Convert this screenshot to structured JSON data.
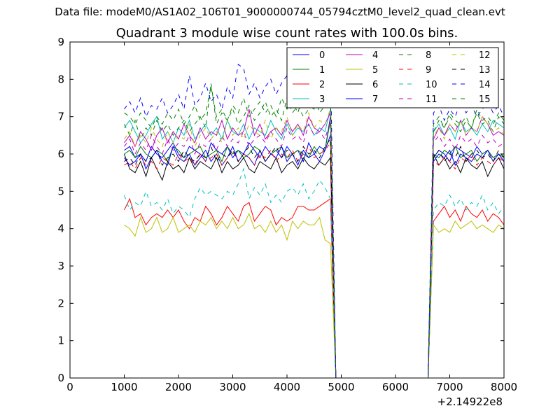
{
  "figure": {
    "suptitle": "Data file: modeM0/AS1A02_106T01_9000000744_05794cztM0_level2_quad_clean.evt"
  },
  "chart_data": {
    "type": "line",
    "title": "Quadrant 3 module wise count rates with 100.0s bins.",
    "xlabel": "",
    "ylabel": "",
    "x_offset_label": "+2.14922e8",
    "xlim": [
      0,
      8000
    ],
    "ylim": [
      0,
      9
    ],
    "xticks": [
      0,
      1000,
      2000,
      3000,
      4000,
      5000,
      6000,
      7000,
      8000
    ],
    "yticks": [
      0,
      1,
      2,
      3,
      4,
      5,
      6,
      7,
      8,
      9
    ],
    "grid": false,
    "legend_position": "top-right",
    "x_description": "time bins (100 s), x offset +2.14922e8",
    "segments": [
      {
        "x_start": 1000,
        "x_end": 4800,
        "step": 100
      },
      {
        "x_start": 4800,
        "x_end": 4900,
        "step": 100
      },
      {
        "x_start": 4900,
        "x_end": 6700,
        "step": 100,
        "constant": 0
      },
      {
        "x_start": 6700,
        "x_end": 8000,
        "step": 100
      }
    ],
    "series": [
      {
        "name": "0",
        "color": "#0000ff",
        "dash": "solid",
        "values1": [
          6.1,
          6.2,
          5.9,
          6.0,
          5.8,
          6.2,
          6.0,
          5.9,
          6.1,
          6.3,
          6.0,
          5.9,
          6.2,
          6.1,
          6.0,
          5.8,
          6.3,
          6.1,
          6.0,
          6.2,
          5.9,
          6.1,
          6.0,
          6.3,
          6.1,
          5.9,
          6.2,
          6.0,
          6.1,
          5.9,
          6.2,
          6.0,
          6.1,
          5.8,
          6.3,
          6.0,
          6.2,
          6.1,
          7.0
        ],
        "values2": [
          5.9,
          6.1,
          6.0,
          5.8,
          6.2,
          6.1,
          6.0,
          5.9,
          6.2,
          6.0,
          6.1,
          5.9,
          6.0,
          5.8
        ]
      },
      {
        "name": "1",
        "color": "#008000",
        "dash": "solid",
        "values1": [
          6.0,
          6.1,
          5.9,
          6.2,
          6.0,
          5.9,
          6.1,
          6.0,
          5.8,
          6.2,
          6.1,
          5.9,
          6.0,
          6.1,
          6.2,
          5.9,
          6.0,
          6.1,
          5.8,
          6.2,
          6.0,
          6.1,
          5.9,
          6.0,
          6.2,
          6.1,
          5.8,
          6.0,
          6.1,
          6.2,
          5.9,
          6.0,
          6.1,
          6.0,
          5.9,
          6.2,
          6.0,
          6.1,
          6.9
        ],
        "values2": [
          6.0,
          5.9,
          6.1,
          6.0,
          6.2,
          5.9,
          6.0,
          6.1,
          5.8,
          6.0,
          6.1,
          5.9,
          6.0,
          5.9
        ]
      },
      {
        "name": "2",
        "color": "#ff0000",
        "dash": "solid",
        "values1": [
          4.5,
          4.8,
          4.3,
          4.4,
          4.1,
          4.3,
          4.4,
          4.3,
          4.5,
          4.3,
          4.5,
          4.2,
          4.0,
          4.3,
          4.2,
          4.6,
          4.4,
          4.1,
          4.3,
          4.6,
          4.4,
          4.2,
          4.6,
          4.7,
          4.2,
          4.4,
          4.6,
          4.5,
          4.1,
          4.3,
          4.2,
          4.3,
          4.6,
          4.6,
          4.5,
          4.5,
          4.6,
          4.7,
          4.8
        ],
        "values2": [
          4.2,
          4.4,
          4.6,
          4.3,
          4.5,
          4.2,
          4.6,
          4.4,
          4.3,
          4.5,
          4.2,
          4.4,
          4.3,
          4.1
        ]
      },
      {
        "name": "3",
        "color": "#00bfbf",
        "dash": "solid",
        "values1": [
          6.7,
          6.9,
          6.6,
          6.3,
          6.5,
          6.8,
          7.0,
          6.4,
          6.6,
          6.3,
          6.7,
          6.5,
          6.9,
          6.4,
          6.6,
          6.8,
          6.5,
          6.7,
          6.4,
          6.9,
          6.6,
          6.5,
          6.8,
          6.4,
          6.7,
          6.6,
          6.5,
          6.9,
          6.6,
          6.4,
          6.8,
          6.5,
          6.7,
          6.6,
          6.8,
          6.5,
          6.7,
          6.6,
          7.2
        ],
        "values2": [
          6.6,
          6.8,
          6.5,
          6.7,
          6.4,
          6.9,
          6.6,
          6.7,
          6.5,
          6.8,
          6.6,
          6.9,
          6.8,
          6.7
        ]
      },
      {
        "name": "4",
        "color": "#bf00bf",
        "dash": "solid",
        "values1": [
          6.3,
          6.5,
          6.2,
          6.6,
          6.4,
          6.1,
          6.5,
          6.7,
          6.3,
          6.6,
          6.4,
          6.8,
          6.5,
          6.3,
          6.7,
          6.4,
          6.6,
          6.5,
          6.9,
          6.4,
          6.7,
          6.5,
          6.6,
          7.2,
          6.5,
          6.8,
          6.4,
          6.6,
          6.7,
          6.5,
          6.9,
          6.6,
          6.8,
          6.5,
          7.0,
          6.7,
          6.6,
          6.8,
          7.1
        ],
        "values2": [
          6.4,
          6.7,
          6.5,
          6.8,
          6.6,
          6.9,
          6.5,
          6.7,
          6.6,
          7.0,
          6.8,
          6.5,
          6.6,
          6.5
        ]
      },
      {
        "name": "5",
        "color": "#bfbf00",
        "dash": "solid",
        "values1": [
          4.1,
          4.0,
          3.8,
          4.3,
          3.9,
          4.0,
          4.3,
          3.9,
          4.0,
          4.3,
          3.9,
          4.0,
          4.1,
          3.9,
          4.2,
          4.1,
          4.3,
          4.0,
          4.2,
          4.0,
          4.3,
          4.0,
          4.1,
          4.4,
          4.0,
          4.1,
          3.9,
          4.2,
          3.9,
          4.1,
          3.7,
          4.2,
          4.0,
          4.2,
          4.1,
          4.1,
          4.3,
          3.7,
          3.6
        ],
        "values2": [
          4.1,
          3.9,
          4.0,
          3.9,
          4.2,
          4.0,
          4.1,
          4.2,
          4.0,
          4.1,
          4.0,
          3.9,
          4.1,
          4.0
        ]
      },
      {
        "name": "6",
        "color": "#000000",
        "dash": "solid",
        "values1": [
          6.0,
          5.6,
          5.5,
          5.8,
          5.4,
          5.9,
          5.6,
          5.3,
          5.8,
          5.6,
          5.7,
          5.5,
          5.9,
          5.6,
          5.8,
          5.7,
          5.6,
          5.9,
          5.5,
          5.8,
          5.6,
          5.7,
          5.9,
          5.6,
          5.5,
          5.8,
          5.7,
          5.6,
          5.9,
          5.5,
          5.7,
          5.8,
          5.6,
          5.9,
          5.7,
          5.6,
          5.8,
          5.7,
          5.9
        ],
        "values2": [
          6.0,
          5.7,
          5.9,
          5.6,
          5.8,
          5.5,
          5.9,
          5.7,
          5.6,
          5.8,
          5.4,
          5.7,
          5.9,
          5.6
        ]
      },
      {
        "name": "7",
        "color": "#0000ff",
        "dash": "solid",
        "values1": [
          5.9,
          5.7,
          5.8,
          6.0,
          5.6,
          5.9,
          6.1,
          5.8,
          5.7,
          6.2,
          5.9,
          5.8,
          6.0,
          5.7,
          5.9,
          6.1,
          5.8,
          6.0,
          5.7,
          5.9,
          6.2,
          5.8,
          6.0,
          5.9,
          5.7,
          6.1,
          5.8,
          6.0,
          5.9,
          6.2,
          5.8,
          6.0,
          5.7,
          6.1,
          5.9,
          6.0,
          5.8,
          6.1,
          6.5
        ],
        "values2": [
          5.8,
          6.0,
          5.9,
          6.1,
          5.7,
          6.0,
          5.9,
          5.8,
          6.0,
          5.9,
          6.1,
          5.8,
          6.0,
          5.8
        ]
      },
      {
        "name": "8",
        "color": "#008000",
        "dash": "dashed",
        "values1": [
          6.8,
          6.5,
          6.9,
          6.4,
          6.7,
          6.5,
          6.9,
          6.6,
          6.8,
          6.5,
          6.7,
          6.9,
          6.6,
          6.8,
          7.0,
          6.7,
          7.9,
          6.8,
          7.1,
          6.9,
          7.2,
          6.8,
          7.0,
          7.3,
          6.9,
          7.1,
          7.4,
          7.0,
          7.2,
          6.9,
          7.5,
          7.1,
          7.3,
          7.0,
          7.2,
          7.6,
          7.1,
          7.3,
          7.4
        ],
        "values2": [
          6.6,
          6.9,
          6.7,
          7.0,
          6.8,
          6.6,
          6.9,
          6.7,
          7.1,
          6.8,
          6.9,
          6.6,
          7.0,
          6.8
        ]
      },
      {
        "name": "9",
        "color": "#ff0000",
        "dash": "dashed",
        "values1": [
          5.7,
          5.8,
          5.6,
          5.9,
          5.7,
          5.8,
          5.6,
          5.9,
          5.8,
          5.7,
          6.0,
          5.8,
          5.9,
          5.7,
          6.0,
          5.8,
          5.9,
          6.0,
          5.7,
          5.9,
          6.1,
          5.8,
          6.0,
          5.9,
          5.7,
          6.0,
          5.9,
          6.1,
          5.8,
          6.0,
          5.9,
          6.1,
          5.8,
          6.0,
          6.2,
          5.9,
          6.0,
          6.1,
          6.3
        ],
        "values2": [
          5.8,
          5.7,
          5.9,
          5.8,
          5.6,
          5.9,
          5.8,
          6.0,
          5.7,
          5.9,
          5.8,
          5.7,
          5.9,
          5.8
        ]
      },
      {
        "name": "10",
        "color": "#00bfbf",
        "dash": "dashed",
        "values1": [
          4.9,
          4.5,
          4.7,
          4.6,
          5.0,
          4.6,
          4.7,
          4.5,
          4.8,
          4.4,
          4.6,
          4.5,
          4.3,
          4.8,
          5.1,
          4.9,
          5.0,
          4.9,
          4.8,
          5.0,
          4.9,
          5.2,
          5.6,
          4.8,
          5.1,
          4.9,
          5.2,
          4.7,
          4.9,
          4.7,
          5.0,
          5.1,
          4.9,
          5.2,
          4.8,
          5.0,
          5.3,
          5.1,
          4.8
        ],
        "values2": [
          4.5,
          4.7,
          4.6,
          4.9,
          4.6,
          4.8,
          4.5,
          4.7,
          4.6,
          4.9,
          4.5,
          4.7,
          4.4,
          4.6
        ]
      },
      {
        "name": "11",
        "color": "#bf00bf",
        "dash": "dashed",
        "values1": [
          6.2,
          6.4,
          6.0,
          6.3,
          6.1,
          6.5,
          6.2,
          6.0,
          6.4,
          6.1,
          6.3,
          6.2,
          6.5,
          6.0,
          6.3,
          6.2,
          6.4,
          6.1,
          6.5,
          6.2,
          6.4,
          6.3,
          6.6,
          6.2,
          6.4,
          6.5,
          6.3,
          6.6,
          6.4,
          6.2,
          6.7,
          6.4,
          6.5,
          6.3,
          6.8,
          6.5,
          6.6,
          6.4,
          6.9
        ],
        "values2": [
          6.3,
          6.5,
          6.2,
          6.4,
          6.1,
          6.5,
          6.3,
          6.4,
          6.2,
          6.5,
          6.3,
          6.4,
          6.2,
          6.3
        ]
      },
      {
        "name": "12",
        "color": "#bfbf00",
        "dash": "dashed",
        "values1": [
          6.4,
          6.6,
          6.2,
          6.5,
          6.3,
          6.7,
          6.4,
          6.2,
          6.6,
          6.3,
          6.5,
          6.4,
          6.8,
          6.2,
          6.5,
          6.7,
          6.4,
          6.6,
          6.3,
          6.9,
          6.5,
          6.7,
          6.4,
          6.8,
          6.6,
          6.5,
          6.9,
          6.4,
          6.7,
          6.6,
          7.0,
          6.5,
          6.8,
          6.6,
          7.1,
          6.7,
          6.9,
          6.8,
          7.2
        ],
        "values2": [
          6.5,
          6.7,
          6.4,
          6.8,
          6.6,
          6.9,
          6.5,
          6.7,
          6.6,
          7.0,
          6.8,
          6.6,
          6.7,
          6.5
        ]
      },
      {
        "name": "13",
        "color": "#000000",
        "dash": "dashed",
        "values1": [
          5.8,
          5.9,
          5.7,
          6.0,
          5.8,
          5.9,
          6.1,
          5.7,
          5.9,
          6.0,
          5.8,
          6.1,
          5.9,
          5.8,
          6.0,
          5.9,
          6.2,
          5.8,
          6.0,
          5.9,
          6.1,
          5.8,
          6.0,
          6.2,
          5.9,
          6.1,
          5.8,
          6.0,
          6.2,
          5.9,
          6.1,
          6.0,
          5.8,
          6.2,
          6.0,
          6.1,
          5.9,
          6.2,
          6.4
        ],
        "values2": [
          5.9,
          6.1,
          5.8,
          6.0,
          5.9,
          6.2,
          5.8,
          6.0,
          6.1,
          5.9,
          6.0,
          5.8,
          6.1,
          5.9
        ]
      },
      {
        "name": "14",
        "color": "#0000ff",
        "dash": "dashed",
        "values1": [
          7.2,
          7.4,
          7.1,
          7.5,
          7.0,
          7.3,
          7.2,
          7.5,
          7.1,
          7.3,
          7.6,
          7.2,
          8.1,
          7.3,
          7.5,
          7.9,
          7.4,
          7.6,
          7.2,
          7.8,
          7.5,
          8.4,
          8.3,
          7.6,
          7.9,
          7.5,
          7.8,
          8.0,
          7.6,
          7.9,
          8.1,
          7.7,
          8.0,
          8.2,
          7.8,
          8.1,
          8.3,
          7.9,
          8.6
        ],
        "values2": [
          7.1,
          7.3,
          6.9,
          7.2,
          7.0,
          7.4,
          7.1,
          7.3,
          7.0,
          7.2,
          7.4,
          7.1,
          7.3,
          7.0
        ]
      },
      {
        "name": "15",
        "color": "#008000",
        "dash": "dashed",
        "values1": [
          7.1,
          7.0,
          6.8,
          7.1,
          6.9,
          6.7,
          7.0,
          6.8,
          7.1,
          6.9,
          7.2,
          6.8,
          7.0,
          7.3,
          6.9,
          7.1,
          7.8,
          7.0,
          7.2,
          6.9,
          7.3,
          7.1,
          7.5,
          7.0,
          7.2,
          7.4,
          7.1,
          7.3,
          7.0,
          7.5,
          7.2,
          7.4,
          7.1,
          7.6,
          7.3,
          7.2,
          7.5,
          7.3,
          7.7
        ],
        "values2": [
          6.8,
          7.0,
          6.7,
          7.1,
          6.9,
          6.8,
          7.0,
          6.7,
          7.2,
          6.9,
          7.0,
          6.8,
          7.1,
          6.9
        ]
      }
    ]
  }
}
